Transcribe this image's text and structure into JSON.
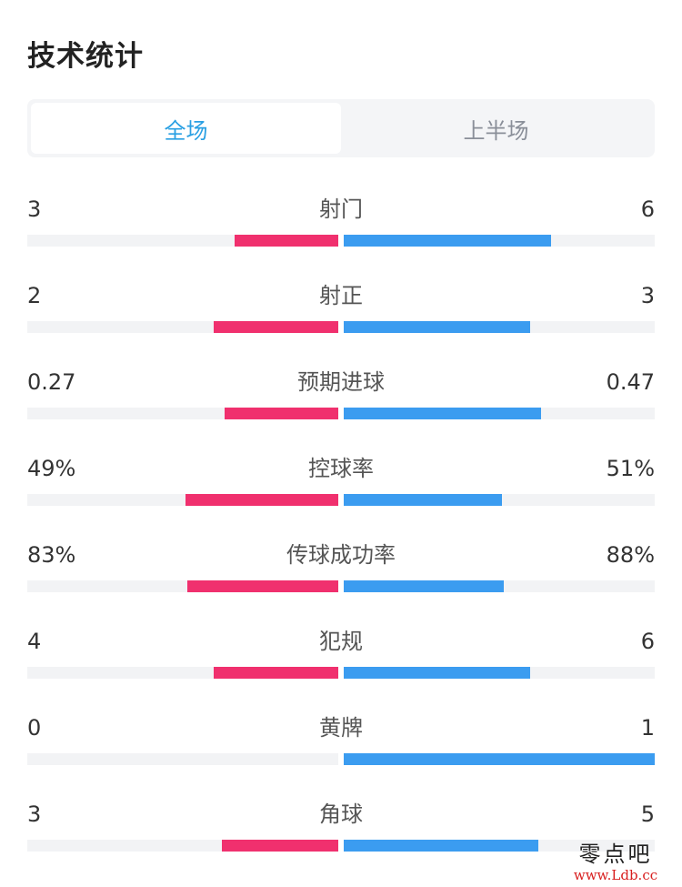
{
  "page": {
    "title": "技术统计"
  },
  "tabs": [
    {
      "label": "全场",
      "active": true
    },
    {
      "label": "上半场",
      "active": false
    }
  ],
  "stats": [
    {
      "label": "射门",
      "home": "3",
      "away": "6",
      "home_share": 0.333,
      "away_share": 0.667
    },
    {
      "label": "射正",
      "home": "2",
      "away": "3",
      "home_share": 0.4,
      "away_share": 0.6
    },
    {
      "label": "预期进球",
      "home": "0.27",
      "away": "0.47",
      "home_share": 0.365,
      "away_share": 0.635
    },
    {
      "label": "控球率",
      "home": "49%",
      "away": "51%",
      "home_share": 0.49,
      "away_share": 0.51
    },
    {
      "label": "传球成功率",
      "home": "83%",
      "away": "88%",
      "home_share": 0.485,
      "away_share": 0.515
    },
    {
      "label": "犯规",
      "home": "4",
      "away": "6",
      "home_share": 0.4,
      "away_share": 0.6
    },
    {
      "label": "黄牌",
      "home": "0",
      "away": "1",
      "home_share": 0.0,
      "away_share": 1.0
    },
    {
      "label": "角球",
      "home": "3",
      "away": "5",
      "home_share": 0.375,
      "away_share": 0.625
    }
  ],
  "colors": {
    "home": "#f0306e",
    "away": "#3b9cf0",
    "accent": "#2aa0e3"
  },
  "watermark": {
    "name": "零点吧",
    "url": "www.Ldb.cc"
  }
}
